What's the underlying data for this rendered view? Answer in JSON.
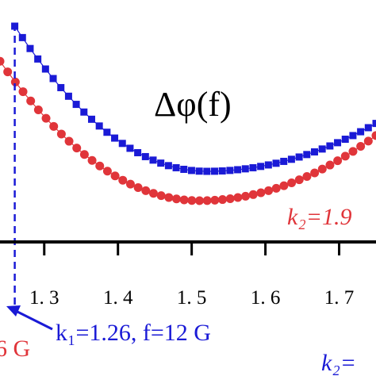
{
  "title": "Δφ(f)",
  "colors": {
    "blue": "#1a1ad6",
    "red": "#e0353a",
    "axis": "#000000"
  },
  "annotations": {
    "k2_red": "k₂=1.9",
    "k1_blue": "k₁=1.26, f=12 G",
    "left_red_fragment": "6 G",
    "k2_blue_fragment": "k₂="
  },
  "chart_data": {
    "type": "scatter",
    "xlim": [
      1.24,
      1.75
    ],
    "x_ticks": [
      1.3,
      1.4,
      1.5,
      1.6,
      1.7
    ],
    "x_tick_labels": [
      "1. 3",
      "1. 4",
      "1. 5",
      "1. 6",
      "1. 7"
    ],
    "reference_line_x": 1.26,
    "series": [
      {
        "color": "blue",
        "marker": "square",
        "x_start": 1.26,
        "x_end": 1.75,
        "n": 48,
        "key_points": [
          [
            1.26,
            1.0
          ],
          [
            1.52,
            0.0
          ],
          [
            1.75,
            0.33
          ]
        ]
      },
      {
        "color": "red",
        "marker": "circle",
        "x_start": 1.24,
        "x_end": 1.75,
        "n": 50,
        "key_points": [
          [
            1.24,
            0.92
          ],
          [
            1.51,
            0.0
          ],
          [
            1.75,
            0.43
          ]
        ]
      }
    ]
  }
}
